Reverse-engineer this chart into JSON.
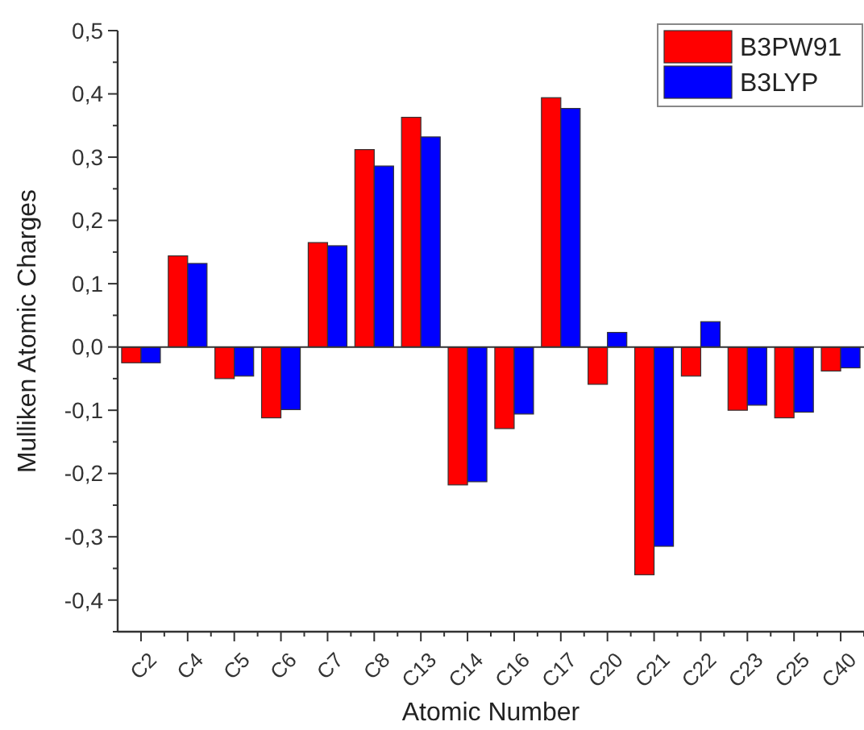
{
  "chart_data": {
    "type": "bar",
    "xlabel": "Atomic Number",
    "ylabel": "Mulliken Atomic Charges",
    "categories": [
      "C2",
      "C4",
      "C5",
      "C6",
      "C7",
      "C8",
      "C13",
      "C14",
      "C16",
      "C17",
      "C20",
      "C21",
      "C22",
      "C23",
      "C25",
      "C40"
    ],
    "series": [
      {
        "name": "B3PW91",
        "color": "#ff0000",
        "values": [
          -0.025,
          0.144,
          -0.05,
          -0.112,
          0.165,
          0.312,
          0.363,
          -0.218,
          -0.129,
          0.394,
          -0.059,
          -0.36,
          -0.046,
          -0.1,
          -0.112,
          -0.038
        ]
      },
      {
        "name": "B3LYP",
        "color": "#0000ff",
        "values": [
          -0.025,
          0.132,
          -0.046,
          -0.099,
          0.16,
          0.286,
          0.332,
          -0.213,
          -0.106,
          0.377,
          0.023,
          -0.315,
          0.04,
          -0.092,
          -0.103,
          -0.033
        ]
      }
    ],
    "ylim": [
      -0.45,
      0.5
    ],
    "yticks": [
      {
        "value": -0.45,
        "label": null
      },
      {
        "value": -0.4,
        "label": "-0,4"
      },
      {
        "value": -0.35,
        "label": null
      },
      {
        "value": -0.3,
        "label": "-0,3"
      },
      {
        "value": -0.25,
        "label": null
      },
      {
        "value": -0.2,
        "label": "-0,2"
      },
      {
        "value": -0.15,
        "label": null
      },
      {
        "value": -0.1,
        "label": "-0,1"
      },
      {
        "value": -0.05,
        "label": null
      },
      {
        "value": 0,
        "label": "0,0"
      },
      {
        "value": 0.05,
        "label": null
      },
      {
        "value": 0.1,
        "label": "0,1"
      },
      {
        "value": 0.15,
        "label": null
      },
      {
        "value": 0.2,
        "label": "0,2"
      },
      {
        "value": 0.25,
        "label": null
      },
      {
        "value": 0.3,
        "label": "0,3"
      },
      {
        "value": 0.35,
        "label": null
      },
      {
        "value": 0.4,
        "label": "0,4"
      },
      {
        "value": 0.45,
        "label": null
      },
      {
        "value": 0.5,
        "label": "0,5"
      }
    ],
    "ref_lines": [
      {
        "axis": "y",
        "value": 0
      }
    ],
    "legend": "top right"
  }
}
